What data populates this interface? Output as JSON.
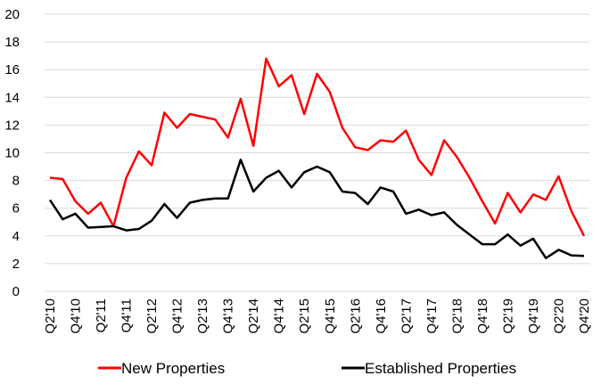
{
  "chart_data": {
    "type": "line",
    "categories": [
      "Q2'10",
      null,
      "Q4'10",
      null,
      "Q2'11",
      null,
      "Q4'11",
      null,
      "Q2'12",
      null,
      "Q4'12",
      null,
      "Q2'13",
      null,
      "Q4'13",
      null,
      "Q2'14",
      null,
      "Q4'14",
      null,
      "Q2'15",
      null,
      "Q4'15",
      null,
      "Q2'16",
      null,
      "Q4'16",
      null,
      "Q2'17",
      null,
      "Q4'17",
      null,
      "Q2'18",
      null,
      "Q4'18",
      null,
      "Q2'19",
      null,
      "Q4'19",
      null,
      "Q2'20",
      null,
      "Q4'20"
    ],
    "series": [
      {
        "name": "New Properties",
        "color": "#ff0000",
        "values": [
          8.2,
          8.1,
          6.5,
          5.6,
          6.4,
          4.7,
          8.2,
          10.1,
          9.1,
          12.9,
          11.8,
          12.8,
          12.6,
          12.4,
          11.1,
          13.9,
          10.5,
          16.8,
          14.8,
          15.6,
          12.8,
          15.7,
          14.4,
          11.8,
          10.4,
          10.2,
          10.9,
          10.8,
          11.6,
          9.5,
          8.4,
          10.9,
          9.7,
          8.2,
          6.5,
          4.9,
          7.1,
          5.7,
          7.0,
          6.6,
          8.3,
          5.8,
          4.0
        ]
      },
      {
        "name": "Established Properties",
        "color": "#000000",
        "values": [
          6.6,
          5.2,
          5.6,
          4.6,
          4.65,
          4.7,
          4.4,
          4.5,
          5.1,
          6.3,
          5.3,
          6.4,
          6.6,
          6.7,
          6.7,
          9.5,
          7.2,
          8.2,
          8.7,
          7.5,
          8.6,
          9.0,
          8.6,
          7.2,
          7.1,
          6.3,
          7.5,
          7.2,
          5.6,
          5.9,
          5.5,
          5.7,
          4.8,
          4.1,
          3.4,
          3.4,
          4.1,
          3.3,
          3.8,
          2.4,
          3.0,
          2.6,
          2.55
        ]
      }
    ],
    "ylim": [
      0,
      20
    ],
    "yticks": [
      0,
      2,
      4,
      6,
      8,
      10,
      12,
      14,
      16,
      18,
      20
    ],
    "grid": true
  }
}
